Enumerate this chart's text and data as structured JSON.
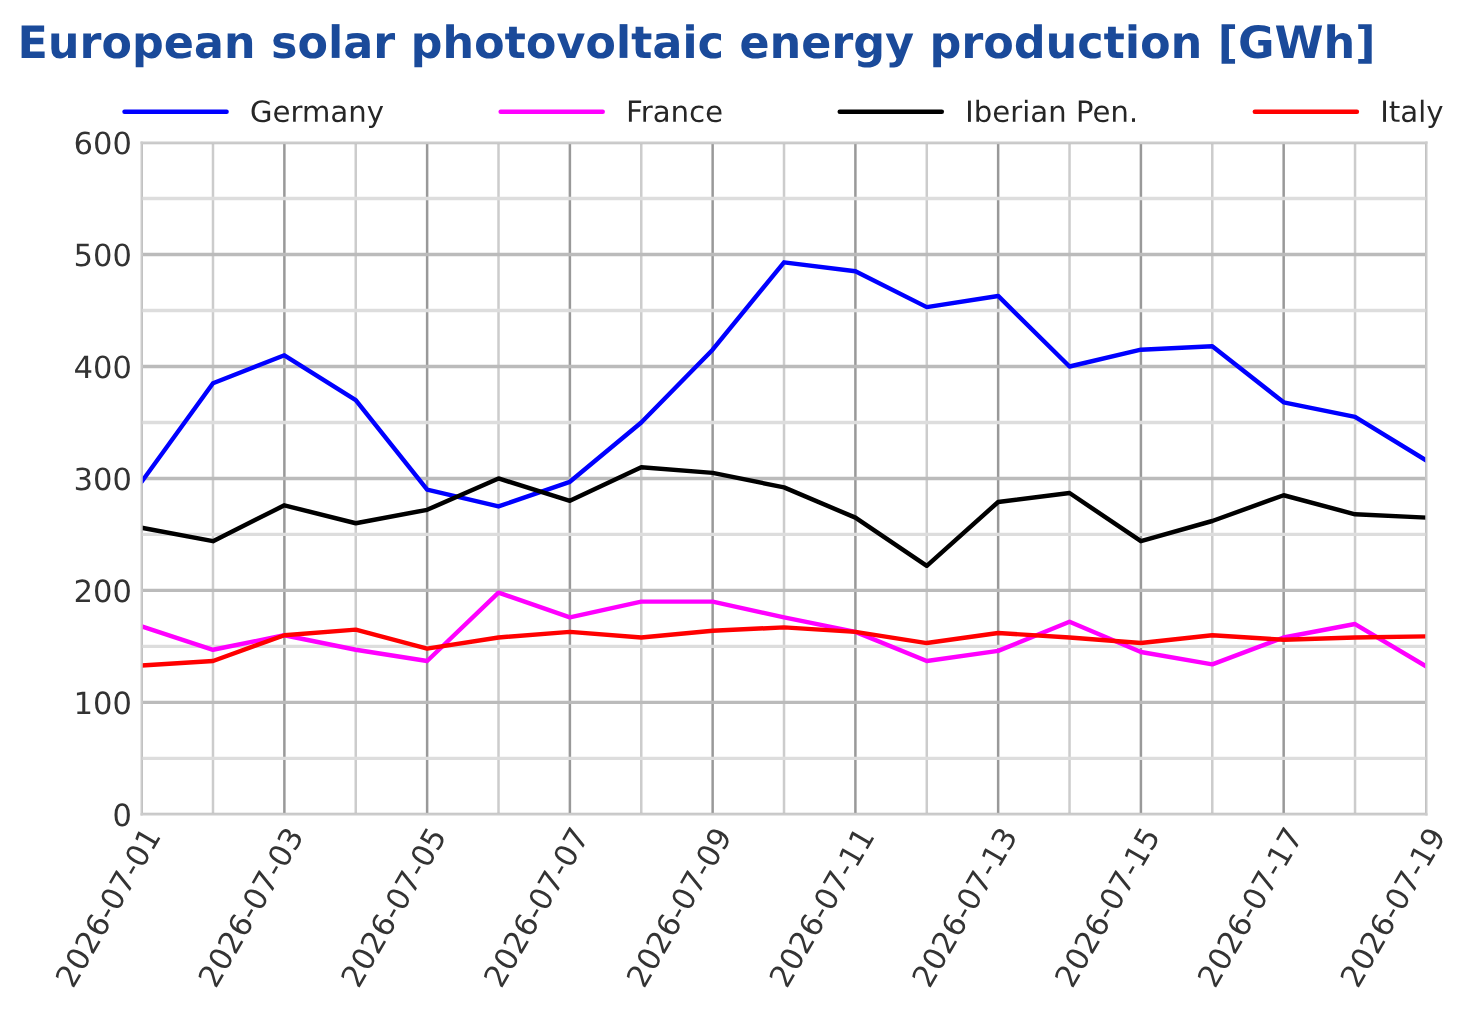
{
  "chart_data": {
    "type": "line",
    "title": "European solar photovoltaic energy production [GWh]",
    "x": [
      "2026-07-01",
      "2026-07-02",
      "2026-07-03",
      "2026-07-04",
      "2026-07-05",
      "2026-07-06",
      "2026-07-07",
      "2026-07-08",
      "2026-07-09",
      "2026-07-10",
      "2026-07-11",
      "2026-07-12",
      "2026-07-13",
      "2026-07-14",
      "2026-07-15",
      "2026-07-16",
      "2026-07-17",
      "2026-07-18",
      "2026-07-19"
    ],
    "series": [
      {
        "name": "Germany",
        "color": "#0000ff",
        "values": [
          297,
          385,
          410,
          370,
          290,
          275,
          297,
          350,
          415,
          493,
          485,
          453,
          463,
          400,
          415,
          418,
          368,
          355,
          316
        ]
      },
      {
        "name": "France",
        "color": "#ff00ff",
        "values": [
          168,
          147,
          160,
          147,
          137,
          198,
          176,
          190,
          190,
          176,
          163,
          137,
          146,
          172,
          145,
          134,
          158,
          170,
          132
        ]
      },
      {
        "name": "Iberian Pen.",
        "color": "#000000",
        "values": [
          256,
          244,
          276,
          260,
          272,
          300,
          280,
          310,
          305,
          292,
          265,
          222,
          279,
          287,
          244,
          262,
          285,
          268,
          265
        ]
      },
      {
        "name": "Italy",
        "color": "#ff0000",
        "values": [
          133,
          137,
          160,
          165,
          148,
          158,
          163,
          158,
          164,
          167,
          163,
          153,
          162,
          158,
          153,
          160,
          156,
          158,
          159
        ]
      }
    ],
    "xlim": [
      "2026-07-01",
      "2026-07-19"
    ],
    "xticks": [
      "2026-07-01",
      {
        "value": "2026-07-02",
        "label": null
      },
      "2026-07-03",
      {
        "value": "2026-07-04",
        "label": null
      },
      "2026-07-05",
      {
        "value": "2026-07-06",
        "label": null
      },
      "2026-07-07",
      {
        "value": "2026-07-08",
        "label": null
      },
      "2026-07-09",
      {
        "value": "2026-07-10",
        "label": null
      },
      "2026-07-11",
      {
        "value": "2026-07-12",
        "label": null
      },
      "2026-07-13",
      {
        "value": "2026-07-14",
        "label": null
      },
      "2026-07-15",
      {
        "value": "2026-07-16",
        "label": null
      },
      "2026-07-17",
      {
        "value": "2026-07-18",
        "label": null
      },
      "2026-07-19"
    ],
    "ylim": [
      0,
      600
    ],
    "yticks": [
      0,
      {
        "value": 50,
        "label": null
      },
      100,
      {
        "value": 150,
        "label": null
      },
      200,
      {
        "value": 250,
        "label": null
      },
      300,
      {
        "value": 350,
        "label": null
      },
      400,
      {
        "value": 450,
        "label": null
      },
      500,
      {
        "value": 550,
        "label": null
      },
      600
    ],
    "grid": true,
    "legend": "top",
    "marker": "none",
    "line_style": "solid"
  }
}
